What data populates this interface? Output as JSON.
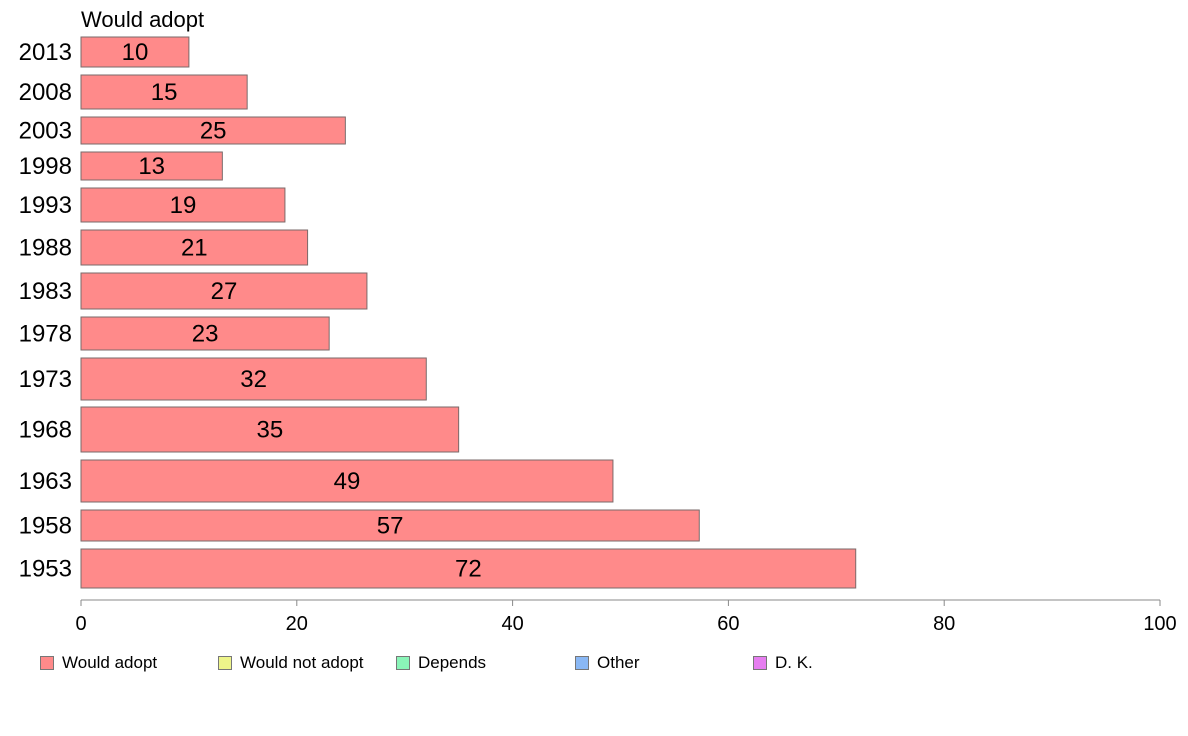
{
  "chart_data": {
    "type": "bar",
    "orientation": "horizontal",
    "title": "Would adopt",
    "categories": [
      "2013",
      "2008",
      "2003",
      "1998",
      "1993",
      "1988",
      "1983",
      "1978",
      "1973",
      "1968",
      "1963",
      "1958",
      "1953"
    ],
    "series": [
      {
        "name": "Would adopt",
        "values": [
          10,
          15.4,
          24.5,
          13.1,
          18.9,
          21,
          26.5,
          23,
          32,
          35,
          49.3,
          57.3,
          71.8
        ],
        "labels": [
          "10",
          "15",
          "25",
          "13",
          "19",
          "21",
          "27",
          "23",
          "32",
          "35",
          "49",
          "57",
          "72"
        ]
      }
    ],
    "xlim": [
      0,
      100
    ],
    "xticks": [
      "0",
      "20",
      "40",
      "60",
      "80",
      "100"
    ],
    "grid": false,
    "legend_position": "bottom",
    "legend": [
      {
        "label": "Would adopt",
        "color": "#ff8a8a"
      },
      {
        "label": "Would not adopt",
        "color": "#eef58a"
      },
      {
        "label": "Depends",
        "color": "#8af5b8"
      },
      {
        "label": "Other",
        "color": "#8ab8f5"
      },
      {
        "label": "D. K.",
        "color": "#e67ef0"
      }
    ],
    "bar_color": "#ff8a8a"
  }
}
